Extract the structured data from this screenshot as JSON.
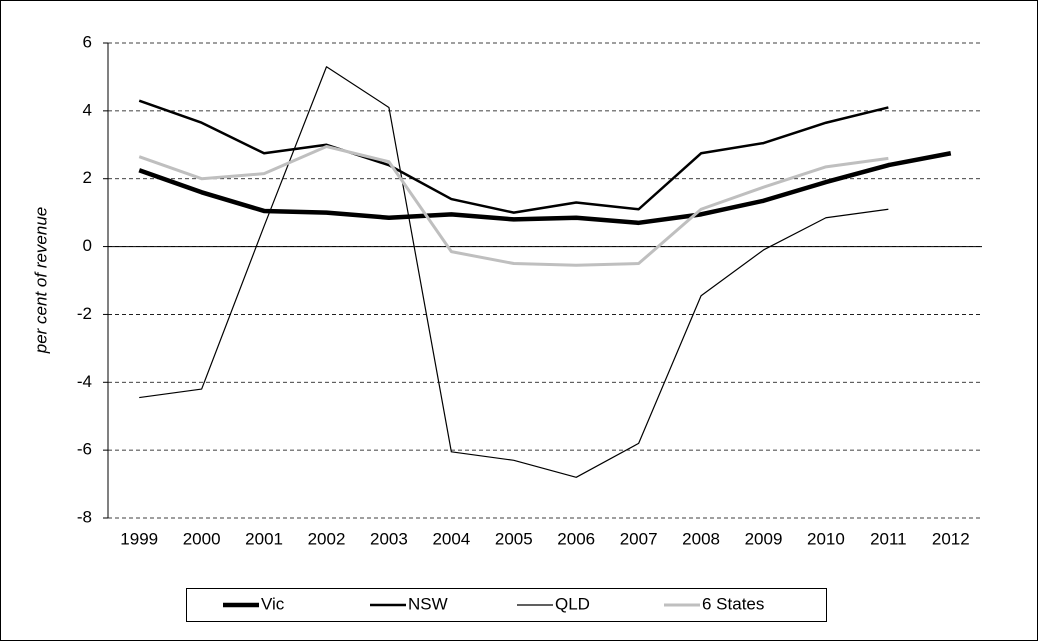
{
  "chart_data": {
    "type": "line",
    "y_label": "per cent of revenue",
    "categories": [
      "1999",
      "2000",
      "2001",
      "2002",
      "2003",
      "2004",
      "2005",
      "2006",
      "2007",
      "2008",
      "2009",
      "2010",
      "2011",
      "2012"
    ],
    "ylim": [
      -8,
      6
    ],
    "yticks": [
      -8,
      -6,
      -4,
      -2,
      0,
      2,
      4,
      6
    ],
    "grid": true,
    "legend": "bottom",
    "series": [
      {
        "name": "Vic",
        "color": "#000000",
        "line_width": 4.5,
        "values": [
          2.25,
          1.6,
          1.05,
          1.0,
          0.85,
          0.95,
          0.8,
          0.85,
          0.7,
          0.95,
          1.35,
          1.9,
          2.4,
          2.75
        ]
      },
      {
        "name": "NSW",
        "color": "#000000",
        "line_width": 2.5,
        "values": [
          4.3,
          3.65,
          2.75,
          3.0,
          2.4,
          1.4,
          1.0,
          1.3,
          1.1,
          2.75,
          3.05,
          3.65,
          4.1,
          null
        ]
      },
      {
        "name": "QLD",
        "color": "#000000",
        "line_width": 1.2,
        "values": [
          -4.45,
          -4.2,
          0.6,
          5.3,
          4.1,
          -6.05,
          -6.3,
          -6.8,
          -5.8,
          -1.45,
          -0.1,
          0.85,
          1.1,
          null
        ]
      },
      {
        "name": "6 States",
        "color": "#bfbfbf",
        "line_width": 3,
        "values": [
          2.65,
          2.0,
          2.15,
          2.95,
          2.5,
          -0.15,
          -0.5,
          -0.55,
          -0.5,
          1.1,
          1.75,
          2.35,
          2.6,
          null
        ]
      }
    ]
  }
}
